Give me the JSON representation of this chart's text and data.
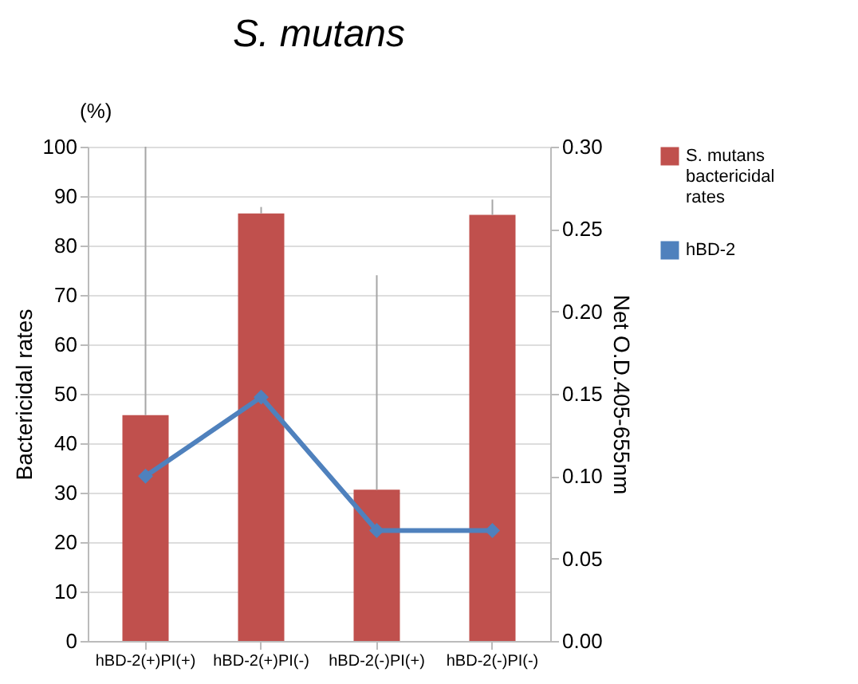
{
  "chart_data": {
    "type": "bar",
    "title": "S. mutans",
    "ylabel": "Bactericidal rates",
    "y2label": "Net O.D.405-655nm",
    "annotations": [
      "(%)"
    ],
    "categories": [
      "hBD-2(+)PI(+)",
      "hBD-2(+)PI(-)",
      "hBD-2(-)PI(+)",
      "hBD-2(-)PI(-)"
    ],
    "series": [
      {
        "name": "S. mutans bactericidal rates",
        "color": "#c0504d",
        "values": [
          45.7,
          86.5,
          30.6,
          86.2
        ],
        "errors": [
          [
            45.7,
            100
          ],
          [
            86.5,
            87.8
          ],
          [
            30.6,
            74
          ],
          [
            86.2,
            89.3
          ]
        ]
      },
      {
        "name": "hBD-2",
        "type": "line",
        "axis": "y2",
        "color": "#4f81bd",
        "marker": "diamond",
        "values": [
          0.1,
          0.148,
          0.067,
          0.067
        ]
      }
    ],
    "ylim": [
      0,
      100
    ],
    "yticks": [
      0,
      10,
      20,
      30,
      40,
      50,
      60,
      70,
      80,
      90,
      100
    ],
    "y2lim": [
      0,
      0.3
    ],
    "y2ticks": [
      {
        "value": 0,
        "label": "0.00"
      },
      {
        "value": 0.05,
        "label": "0.05"
      },
      {
        "value": 0.1,
        "label": "0.10"
      },
      {
        "value": 0.15,
        "label": "0.15"
      },
      {
        "value": 0.2,
        "label": "0.20"
      },
      {
        "value": 0.25,
        "label": "0.25"
      },
      {
        "value": 0.3,
        "label": "0.30"
      }
    ],
    "grid": "y",
    "legend": "right"
  }
}
